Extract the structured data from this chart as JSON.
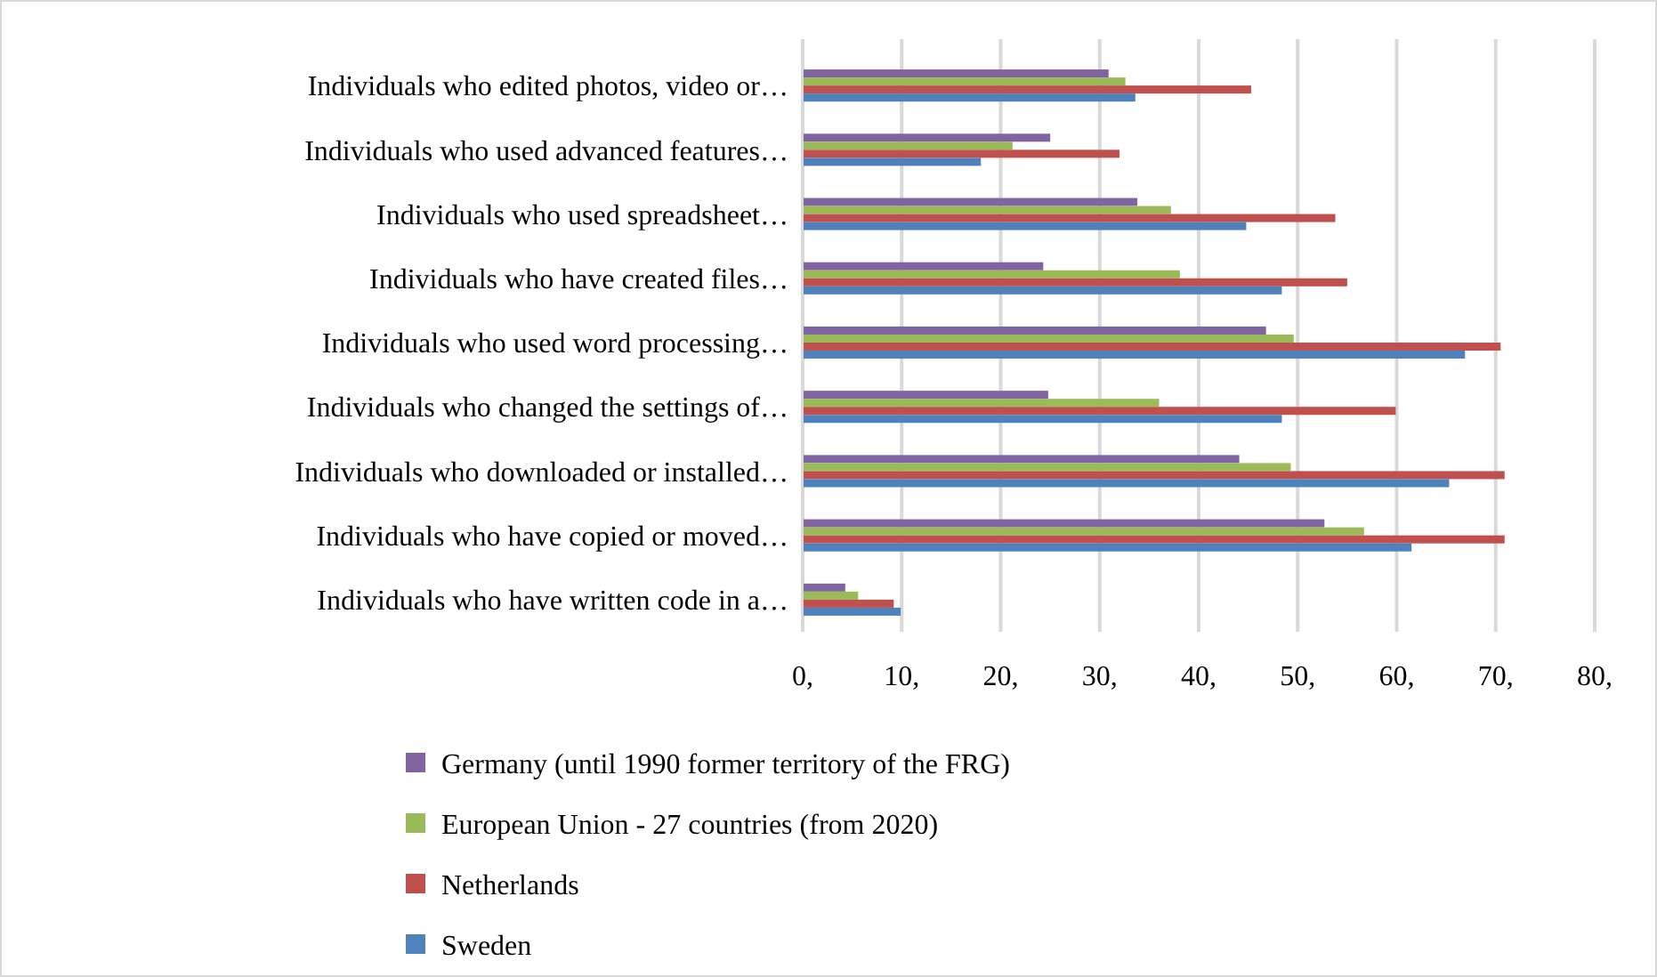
{
  "chart_data": {
    "type": "bar",
    "orientation": "horizontal",
    "categories": [
      "Individuals who edited photos, video or…",
      "Individuals who used advanced features…",
      "Individuals who used spreadsheet…",
      "Individuals who have created files…",
      "Individuals who used word processing…",
      "Individuals who changed the settings of…",
      "Individuals who downloaded or installed…",
      "Individuals who have copied or moved…",
      "Individuals who have written code in a…"
    ],
    "series": [
      {
        "name": "Germany (until 1990 former territory of the FRG)",
        "color": "#8064a2",
        "values": [
          30.9,
          25.0,
          33.8,
          24.3,
          46.8,
          24.8,
          44.1,
          52.7,
          4.3
        ]
      },
      {
        "name": "European Union - 27 countries (from 2020)",
        "color": "#9bbb59",
        "values": [
          32.6,
          21.2,
          37.2,
          38.1,
          49.6,
          36.0,
          49.3,
          56.7,
          5.6
        ]
      },
      {
        "name": "Netherlands",
        "color": "#c0504d",
        "values": [
          45.3,
          32.0,
          53.8,
          55.0,
          70.5,
          59.9,
          70.9,
          70.9,
          9.2
        ]
      },
      {
        "name": "Sweden",
        "color": "#4f81bd",
        "values": [
          33.6,
          18.0,
          44.8,
          48.4,
          66.9,
          48.4,
          65.3,
          61.5,
          9.9
        ]
      }
    ],
    "xlim": [
      0,
      80
    ],
    "xticks": [
      {
        "value": 0,
        "label": "0,"
      },
      {
        "value": 10,
        "label": "10,"
      },
      {
        "value": 20,
        "label": "20,"
      },
      {
        "value": 30,
        "label": "30,"
      },
      {
        "value": 40,
        "label": "40,"
      },
      {
        "value": 50,
        "label": "50,"
      },
      {
        "value": 60,
        "label": "60,"
      },
      {
        "value": 70,
        "label": "70,"
      },
      {
        "value": 80,
        "label": "80,"
      }
    ],
    "grid": "x",
    "legend": "bottom"
  }
}
